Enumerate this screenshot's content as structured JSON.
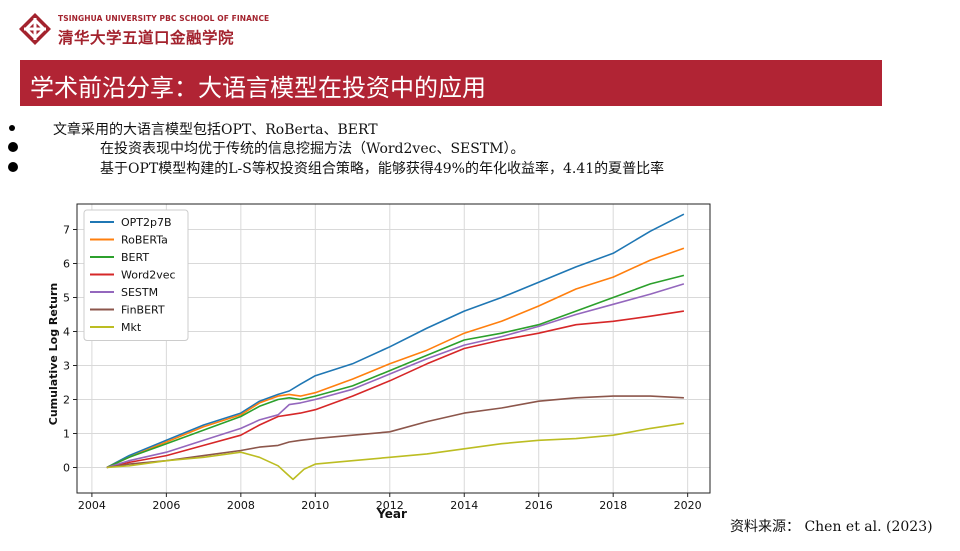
{
  "header": {
    "school_en": "TSINGHUA UNIVERSITY PBC SCHOOL OF FINANCE",
    "school_cn": "清华大学五道口金融学院",
    "brand_color": "#a3232e"
  },
  "slide": {
    "title": "学术前沿分享：大语言模型在投资中的应用",
    "title_bg": "#b12434",
    "bullets": [
      "文章采用的大语言模型包括OPT、RoBerta、BERT",
      "在投资表现中均优于传统的信息挖掘方法（Word2vec、SESTM）。",
      "基于OPT模型构建的L-S等权投资组合策略，能够获得49%的年化收益率，4.41的夏普比率"
    ],
    "source": "资料来源：  Chen et al. (2023)"
  },
  "chart_data": {
    "type": "line",
    "title": "",
    "xlabel": "Year",
    "ylabel": "Cumulative Log Return",
    "xlim": [
      2003.6,
      2020.6
    ],
    "ylim": [
      -0.75,
      7.75
    ],
    "xticks": [
      2004,
      2006,
      2008,
      2010,
      2012,
      2014,
      2016,
      2018,
      2020
    ],
    "yticks": [
      0,
      1,
      2,
      3,
      4,
      5,
      6,
      7
    ],
    "grid": true,
    "legend_position": "top-left",
    "series": [
      {
        "name": "OPT2p7B",
        "color": "#1f77b4",
        "x": [
          2004.4,
          2005,
          2006,
          2007,
          2008,
          2008.5,
          2009,
          2009.3,
          2009.6,
          2010,
          2011,
          2012,
          2013,
          2014,
          2015,
          2016,
          2017,
          2018,
          2019,
          2019.9
        ],
        "y": [
          0,
          0.35,
          0.8,
          1.25,
          1.6,
          1.95,
          2.15,
          2.25,
          2.45,
          2.7,
          3.05,
          3.55,
          4.1,
          4.6,
          5.0,
          5.45,
          5.9,
          6.3,
          6.95,
          7.45
        ]
      },
      {
        "name": "RoBERTa",
        "color": "#ff7f0e",
        "x": [
          2004.4,
          2005,
          2006,
          2007,
          2008,
          2008.5,
          2009,
          2009.3,
          2009.6,
          2010,
          2011,
          2012,
          2013,
          2014,
          2015,
          2016,
          2017,
          2018,
          2019,
          2019.9
        ],
        "y": [
          0,
          0.3,
          0.75,
          1.2,
          1.55,
          1.9,
          2.1,
          2.15,
          2.1,
          2.2,
          2.6,
          3.05,
          3.45,
          3.95,
          4.3,
          4.75,
          5.25,
          5.6,
          6.1,
          6.45
        ]
      },
      {
        "name": "BERT",
        "color": "#2ca02c",
        "x": [
          2004.4,
          2005,
          2006,
          2007,
          2008,
          2008.5,
          2009,
          2009.3,
          2009.6,
          2010,
          2011,
          2012,
          2013,
          2014,
          2015,
          2016,
          2017,
          2018,
          2019,
          2019.9
        ],
        "y": [
          0,
          0.3,
          0.7,
          1.1,
          1.5,
          1.8,
          2.0,
          2.05,
          2.0,
          2.1,
          2.4,
          2.85,
          3.3,
          3.75,
          3.95,
          4.2,
          4.6,
          5.0,
          5.4,
          5.65
        ]
      },
      {
        "name": "Word2vec",
        "color": "#d62728",
        "x": [
          2004.4,
          2005,
          2006,
          2007,
          2008,
          2008.5,
          2009,
          2009.3,
          2009.6,
          2010,
          2011,
          2012,
          2013,
          2014,
          2015,
          2016,
          2017,
          2018,
          2019,
          2019.9
        ],
        "y": [
          0,
          0.15,
          0.35,
          0.65,
          0.95,
          1.25,
          1.5,
          1.55,
          1.6,
          1.7,
          2.1,
          2.55,
          3.05,
          3.5,
          3.75,
          3.95,
          4.2,
          4.3,
          4.45,
          4.6
        ]
      },
      {
        "name": "SESTM",
        "color": "#9467bd",
        "x": [
          2004.4,
          2005,
          2006,
          2007,
          2008,
          2008.5,
          2009,
          2009.3,
          2009.6,
          2010,
          2011,
          2012,
          2013,
          2014,
          2015,
          2016,
          2017,
          2018,
          2019,
          2019.9
        ],
        "y": [
          0,
          0.2,
          0.45,
          0.8,
          1.15,
          1.4,
          1.55,
          1.85,
          1.9,
          2.0,
          2.3,
          2.75,
          3.2,
          3.6,
          3.85,
          4.15,
          4.5,
          4.8,
          5.1,
          5.4
        ]
      },
      {
        "name": "FinBERT",
        "color": "#8c564b",
        "x": [
          2004.4,
          2005,
          2006,
          2007,
          2008,
          2008.5,
          2009,
          2009.3,
          2009.6,
          2010,
          2011,
          2012,
          2013,
          2014,
          2015,
          2016,
          2017,
          2018,
          2019,
          2019.9
        ],
        "y": [
          0,
          0.1,
          0.2,
          0.35,
          0.5,
          0.6,
          0.65,
          0.75,
          0.8,
          0.85,
          0.95,
          1.05,
          1.35,
          1.6,
          1.75,
          1.95,
          2.05,
          2.1,
          2.1,
          2.05
        ]
      },
      {
        "name": "Mkt",
        "color": "#bcbd22",
        "x": [
          2004.4,
          2005,
          2006,
          2007,
          2008,
          2008.5,
          2009,
          2009.2,
          2009.4,
          2009.7,
          2010,
          2011,
          2012,
          2013,
          2014,
          2015,
          2016,
          2017,
          2018,
          2019,
          2019.9
        ],
        "y": [
          0,
          0.05,
          0.2,
          0.3,
          0.45,
          0.3,
          0.05,
          -0.15,
          -0.35,
          -0.05,
          0.1,
          0.2,
          0.3,
          0.4,
          0.55,
          0.7,
          0.8,
          0.85,
          0.95,
          1.15,
          1.3
        ]
      }
    ]
  }
}
